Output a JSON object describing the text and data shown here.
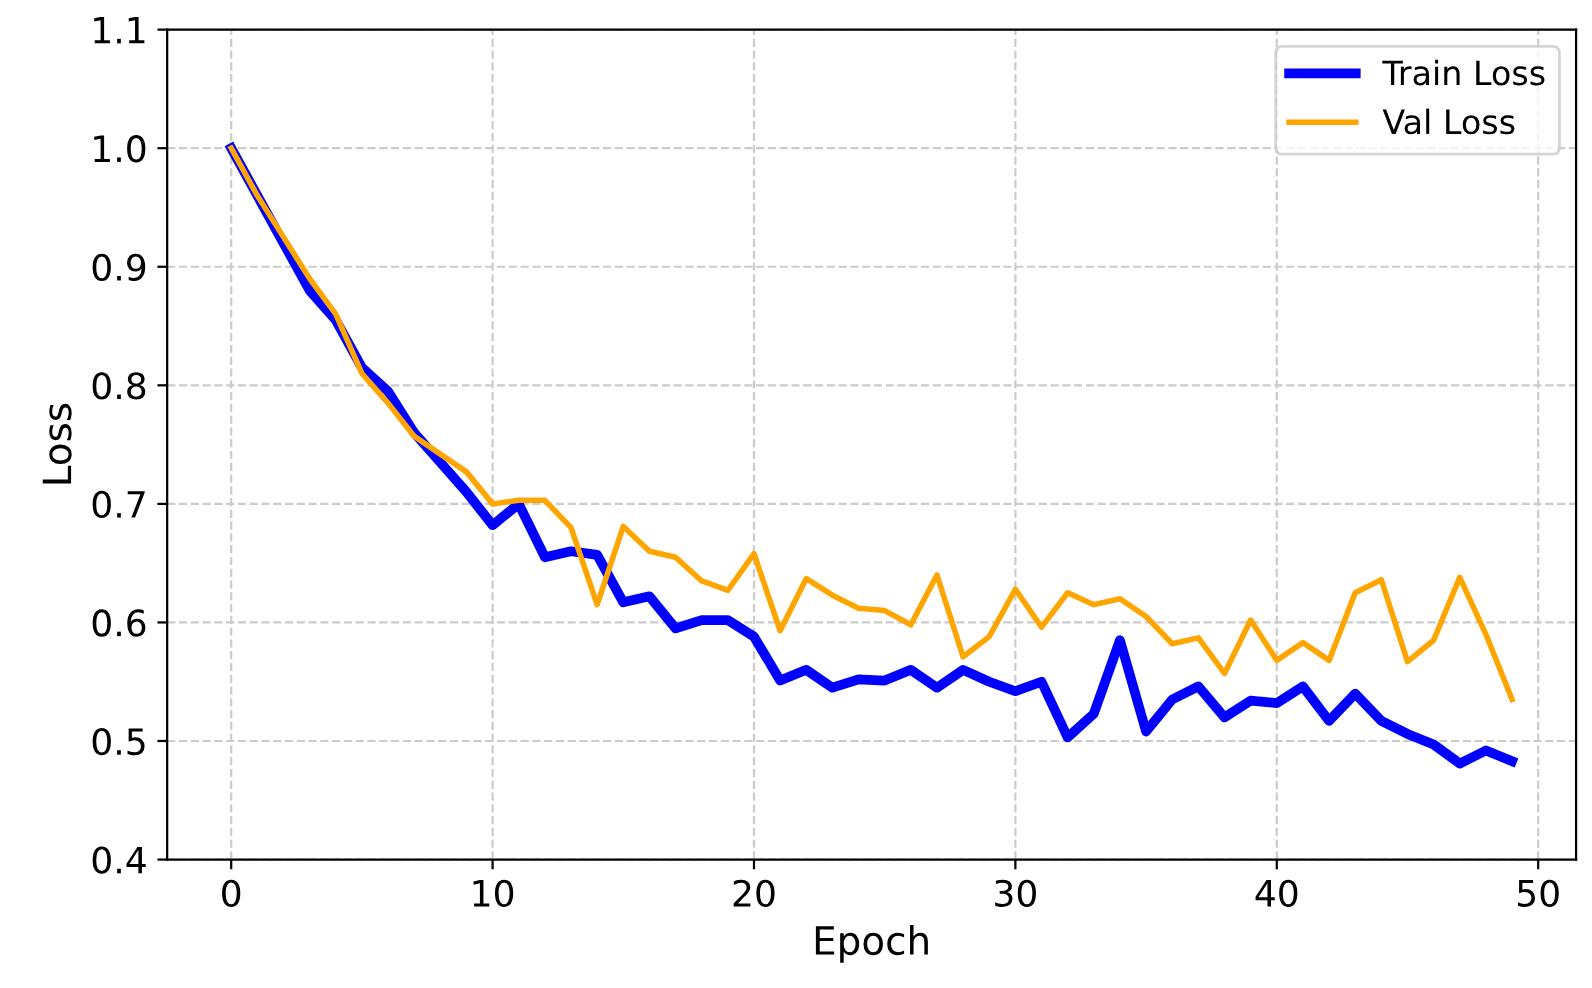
{
  "chart_data": {
    "type": "line",
    "xlabel": "Epoch",
    "ylabel": "Loss",
    "x": [
      0,
      1,
      2,
      3,
      4,
      5,
      6,
      7,
      8,
      9,
      10,
      11,
      12,
      13,
      14,
      15,
      16,
      17,
      18,
      19,
      20,
      21,
      22,
      23,
      24,
      25,
      26,
      27,
      28,
      29,
      30,
      31,
      32,
      33,
      34,
      35,
      36,
      37,
      38,
      39,
      40,
      41,
      42,
      43,
      44,
      45,
      46,
      47,
      48,
      49
    ],
    "series": [
      {
        "name": "Train Loss",
        "color": "#0000ff",
        "values": [
          1.0,
          0.96,
          0.92,
          0.88,
          0.855,
          0.815,
          0.795,
          0.76,
          0.735,
          0.71,
          0.682,
          0.7,
          0.655,
          0.66,
          0.657,
          0.617,
          0.622,
          0.595,
          0.602,
          0.602,
          0.588,
          0.551,
          0.56,
          0.545,
          0.552,
          0.551,
          0.56,
          0.545,
          0.56,
          0.55,
          0.542,
          0.55,
          0.503,
          0.523,
          0.585,
          0.508,
          0.535,
          0.546,
          0.52,
          0.534,
          0.532,
          0.546,
          0.517,
          0.54,
          0.517,
          0.506,
          0.497,
          0.481,
          0.492,
          0.483
        ]
      },
      {
        "name": "Val Loss",
        "color": "#ffa500",
        "values": [
          1.0,
          0.96,
          0.925,
          0.89,
          0.86,
          0.81,
          0.785,
          0.757,
          0.742,
          0.727,
          0.7,
          0.703,
          0.703,
          0.68,
          0.615,
          0.681,
          0.66,
          0.655,
          0.635,
          0.627,
          0.658,
          0.593,
          0.637,
          0.623,
          0.612,
          0.61,
          0.598,
          0.64,
          0.571,
          0.588,
          0.628,
          0.596,
          0.625,
          0.615,
          0.62,
          0.605,
          0.582,
          0.587,
          0.557,
          0.602,
          0.568,
          0.583,
          0.568,
          0.625,
          0.636,
          0.567,
          0.585,
          0.638,
          0.59,
          0.535
        ]
      }
    ],
    "xlim": [
      -2.45,
      51.45
    ],
    "ylim": [
      0.4,
      1.1
    ],
    "xticks": [
      0,
      10,
      20,
      30,
      40,
      50
    ],
    "yticks": [
      0.4,
      0.5,
      0.6,
      0.7,
      0.8,
      0.9,
      {
        "value": 1.0,
        "label": "1.0"
      },
      1.1
    ],
    "grid": true,
    "legend": "top right",
    "line_style": "solid",
    "marker": "none"
  }
}
